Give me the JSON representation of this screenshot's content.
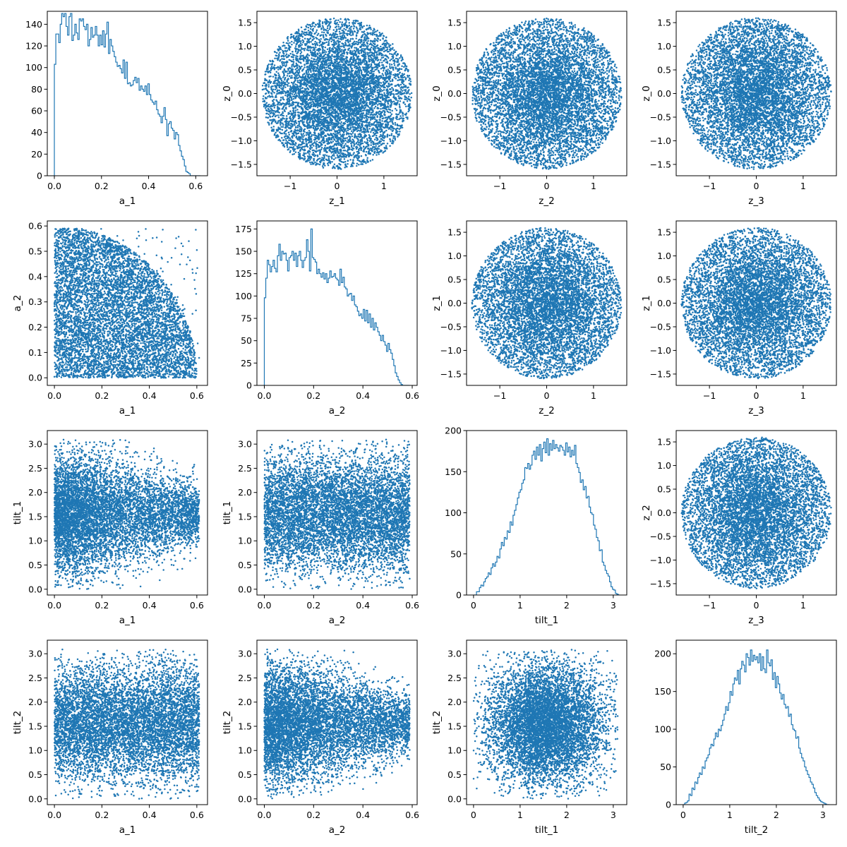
{
  "figure": {
    "marker_color": "#1f77b4",
    "axes_color": "#000000",
    "background": "#ffffff",
    "grid": false
  },
  "chart_data": [
    {
      "type": "histogram",
      "row": 0,
      "col": 0,
      "xlabel": "a_1",
      "ylabel": "",
      "xlim": [
        -0.03,
        0.65
      ],
      "ylim": [
        0,
        152
      ],
      "xticks": [
        0.0,
        0.2,
        0.4,
        0.6
      ],
      "xtick_labels": [
        "0.0",
        "0.2",
        "0.4",
        "0.6"
      ],
      "yticks": [
        0,
        20,
        40,
        60,
        80,
        100,
        120,
        140
      ],
      "ytick_labels": [
        "0",
        "20",
        "40",
        "60",
        "80",
        "100",
        "120",
        "140"
      ],
      "bin_start": 0.0,
      "bin_width": 0.0062,
      "counts": [
        103,
        131,
        131,
        123,
        140,
        150,
        147,
        150,
        138,
        130,
        147,
        150,
        125,
        130,
        140,
        132,
        126,
        145,
        143,
        145,
        138,
        135,
        140,
        120,
        126,
        137,
        128,
        130,
        138,
        130,
        120,
        130,
        121,
        134,
        119,
        131,
        142,
        113,
        126,
        120,
        115,
        110,
        105,
        101,
        102,
        99,
        95,
        107,
        90,
        105,
        85,
        86,
        83,
        84,
        88,
        91,
        86,
        90,
        79,
        83,
        80,
        78,
        83,
        75,
        85,
        75,
        70,
        68,
        66,
        69,
        61,
        57,
        55,
        49,
        55,
        63,
        52,
        37,
        48,
        50,
        44,
        42,
        34,
        40,
        38,
        28,
        23,
        18,
        15,
        9,
        4,
        3,
        2,
        0,
        0,
        0,
        0,
        0,
        0,
        0
      ]
    },
    {
      "type": "scatter",
      "row": 0,
      "col": 1,
      "xlabel": "z_1",
      "ylabel": "z_0",
      "xlim": [
        -1.71,
        1.71
      ],
      "ylim": [
        -1.74,
        1.74
      ],
      "xticks": [
        -1,
        0,
        1
      ],
      "xtick_labels": [
        "−1",
        "0",
        "1"
      ],
      "yticks": [
        -1.5,
        -1.0,
        -0.5,
        0.0,
        0.5,
        1.0,
        1.5
      ],
      "ytick_labels": [
        "−1.5",
        "−1.0",
        "−0.5",
        "0.0",
        "0.5",
        "1.0",
        "1.5"
      ],
      "point_count": 7000,
      "x_range": [
        -1.6,
        1.6
      ],
      "y_range": [
        -1.6,
        1.6
      ],
      "spread": "disk, radius 1.6, denser near the center"
    },
    {
      "type": "scatter",
      "row": 0,
      "col": 2,
      "xlabel": "z_2",
      "ylabel": "z_0",
      "xlim": [
        -1.71,
        1.71
      ],
      "ylim": [
        -1.74,
        1.74
      ],
      "xticks": [
        -1,
        0,
        1
      ],
      "xtick_labels": [
        "−1",
        "0",
        "1"
      ],
      "yticks": [
        -1.5,
        -1.0,
        -0.5,
        0.0,
        0.5,
        1.0,
        1.5
      ],
      "ytick_labels": [
        "−1.5",
        "−1.0",
        "−0.5",
        "0.0",
        "0.5",
        "1.0",
        "1.5"
      ],
      "point_count": 7000,
      "x_range": [
        -1.6,
        1.6
      ],
      "y_range": [
        -1.6,
        1.6
      ],
      "spread": "disk, radius 1.6, denser near the center"
    },
    {
      "type": "scatter",
      "row": 0,
      "col": 3,
      "xlabel": "z_3",
      "ylabel": "z_0",
      "xlim": [
        -1.71,
        1.71
      ],
      "ylim": [
        -1.74,
        1.74
      ],
      "xticks": [
        -1,
        0,
        1
      ],
      "xtick_labels": [
        "−1",
        "0",
        "1"
      ],
      "yticks": [
        -1.5,
        -1.0,
        -0.5,
        0.0,
        0.5,
        1.0,
        1.5
      ],
      "ytick_labels": [
        "−1.5",
        "−1.0",
        "−0.5",
        "0.0",
        "0.5",
        "1.0",
        "1.5"
      ],
      "point_count": 7000,
      "x_range": [
        -1.6,
        1.6
      ],
      "y_range": [
        -1.6,
        1.6
      ],
      "spread": "disk, radius 1.6, denser near the center"
    },
    {
      "type": "scatter",
      "row": 1,
      "col": 0,
      "xlabel": "a_1",
      "ylabel": "a_2",
      "xlim": [
        -0.03,
        0.645
      ],
      "ylim": [
        -0.03,
        0.62
      ],
      "xticks": [
        0.0,
        0.2,
        0.4,
        0.6
      ],
      "xtick_labels": [
        "0.0",
        "0.2",
        "0.4",
        "0.6"
      ],
      "yticks": [
        0.0,
        0.1,
        0.2,
        0.3,
        0.4,
        0.5,
        0.6
      ],
      "ytick_labels": [
        "0.0",
        "0.1",
        "0.2",
        "0.3",
        "0.4",
        "0.5",
        "0.6"
      ],
      "point_count": 7000,
      "x_range": [
        0,
        0.61
      ],
      "y_range": [
        0,
        0.59
      ],
      "spread": "a_1 and a_2 both in [0, ~0.6]; the upper-right corner is empty (a_1² + a_2² ≲ 0.6²)"
    },
    {
      "type": "histogram",
      "row": 1,
      "col": 1,
      "xlabel": "a_2",
      "ylabel": "",
      "xlim": [
        -0.03,
        0.62
      ],
      "ylim": [
        0,
        184
      ],
      "xticks": [
        0.0,
        0.2,
        0.4,
        0.6
      ],
      "xtick_labels": [
        "0.0",
        "0.2",
        "0.4",
        "0.6"
      ],
      "yticks": [
        0,
        25,
        50,
        75,
        100,
        125,
        150,
        175
      ],
      "ytick_labels": [
        "0",
        "25",
        "50",
        "75",
        "100",
        "125",
        "150",
        "175"
      ],
      "bin_start": 0.0,
      "bin_width": 0.0059,
      "counts": [
        98,
        120,
        140,
        135,
        127,
        133,
        140,
        131,
        127,
        145,
        158,
        140,
        150,
        147,
        148,
        140,
        128,
        143,
        145,
        150,
        140,
        148,
        133,
        145,
        150,
        140,
        132,
        140,
        143,
        163,
        150,
        128,
        175,
        143,
        141,
        138,
        125,
        130,
        125,
        121,
        126,
        119,
        125,
        115,
        120,
        128,
        121,
        122,
        125,
        120,
        118,
        112,
        130,
        115,
        121,
        110,
        108,
        100,
        102,
        103,
        95,
        100,
        90,
        88,
        83,
        78,
        80,
        75,
        85,
        72,
        84,
        70,
        80,
        65,
        75,
        62,
        70,
        65,
        60,
        56,
        50,
        56,
        49,
        45,
        38,
        47,
        40,
        36,
        29,
        22,
        14,
        10,
        6,
        3,
        1,
        0,
        0,
        0,
        0,
        0
      ]
    },
    {
      "type": "scatter",
      "row": 1,
      "col": 2,
      "xlabel": "z_2",
      "ylabel": "z_1",
      "xlim": [
        -1.71,
        1.71
      ],
      "ylim": [
        -1.74,
        1.74
      ],
      "xticks": [
        -1,
        0,
        1
      ],
      "xtick_labels": [
        "−1",
        "0",
        "1"
      ],
      "yticks": [
        -1.5,
        -1.0,
        -0.5,
        0.0,
        0.5,
        1.0,
        1.5
      ],
      "ytick_labels": [
        "−1.5",
        "−1.0",
        "−0.5",
        "0.0",
        "0.5",
        "1.0",
        "1.5"
      ],
      "point_count": 7000,
      "x_range": [
        -1.6,
        1.6
      ],
      "y_range": [
        -1.6,
        1.6
      ],
      "spread": "disk, radius 1.6, denser near the center"
    },
    {
      "type": "scatter",
      "row": 1,
      "col": 3,
      "xlabel": "z_3",
      "ylabel": "z_1",
      "xlim": [
        -1.71,
        1.71
      ],
      "ylim": [
        -1.74,
        1.74
      ],
      "xticks": [
        -1,
        0,
        1
      ],
      "xtick_labels": [
        "−1",
        "0",
        "1"
      ],
      "yticks": [
        -1.5,
        -1.0,
        -0.5,
        0.0,
        0.5,
        1.0,
        1.5
      ],
      "ytick_labels": [
        "−1.5",
        "−1.0",
        "−0.5",
        "0.0",
        "0.5",
        "1.0",
        "1.5"
      ],
      "point_count": 7000,
      "x_range": [
        -1.6,
        1.6
      ],
      "y_range": [
        -1.6,
        1.6
      ],
      "spread": "disk, radius 1.6, denser near the center"
    },
    {
      "type": "scatter",
      "row": 2,
      "col": 0,
      "xlabel": "a_1",
      "ylabel": "tilt_1",
      "xlim": [
        -0.03,
        0.645
      ],
      "ylim": [
        -0.12,
        3.28
      ],
      "xticks": [
        0.0,
        0.2,
        0.4,
        0.6
      ],
      "xtick_labels": [
        "0.0",
        "0.2",
        "0.4",
        "0.6"
      ],
      "yticks": [
        0.0,
        0.5,
        1.0,
        1.5,
        2.0,
        2.5,
        3.0
      ],
      "ytick_labels": [
        "0.0",
        "0.5",
        "1.0",
        "1.5",
        "2.0",
        "2.5",
        "3.0"
      ],
      "point_count": 7000,
      "x_range": [
        0,
        0.61
      ],
      "y_range": [
        0,
        3.1
      ],
      "spread": "tilt_1 spans 0–3.1 at small a_1 and narrows toward 1.5 as a_1 approaches 0.6"
    },
    {
      "type": "scatter",
      "row": 2,
      "col": 1,
      "xlabel": "a_2",
      "ylabel": "tilt_1",
      "xlim": [
        -0.03,
        0.62
      ],
      "ylim": [
        -0.12,
        3.28
      ],
      "xticks": [
        0.0,
        0.2,
        0.4,
        0.6
      ],
      "xtick_labels": [
        "0.0",
        "0.2",
        "0.4",
        "0.6"
      ],
      "yticks": [
        0.0,
        0.5,
        1.0,
        1.5,
        2.0,
        2.5,
        3.0
      ],
      "ytick_labels": [
        "0.0",
        "0.5",
        "1.0",
        "1.5",
        "2.0",
        "2.5",
        "3.0"
      ],
      "point_count": 7000,
      "x_range": [
        0,
        0.59
      ],
      "y_range": [
        0,
        3.1
      ],
      "spread": "filled band, a_2 in [0, 0.59], tilt_1 in [0, 3.1] concentrated around 1.5"
    },
    {
      "type": "histogram",
      "row": 2,
      "col": 2,
      "xlabel": "tilt_1",
      "ylabel": "",
      "xlim": [
        -0.15,
        3.29
      ],
      "ylim": [
        0,
        200
      ],
      "xticks": [
        0,
        1,
        2,
        3
      ],
      "xtick_labels": [
        "0",
        "1",
        "2",
        "3"
      ],
      "yticks": [
        0,
        50,
        100,
        150,
        200
      ],
      "ytick_labels": [
        "0",
        "50",
        "100",
        "150",
        "200"
      ],
      "bin_start": 0.0,
      "bin_width": 0.0314,
      "counts": [
        0,
        0,
        4,
        4,
        9,
        12,
        11,
        16,
        20,
        22,
        27,
        25,
        33,
        38,
        35,
        40,
        47,
        45,
        56,
        64,
        60,
        70,
        68,
        78,
        76,
        89,
        85,
        97,
        103,
        110,
        118,
        125,
        128,
        136,
        140,
        155,
        154,
        160,
        153,
        158,
        170,
        175,
        165,
        180,
        170,
        183,
        163,
        178,
        186,
        173,
        190,
        170,
        184,
        176,
        188,
        178,
        183,
        179,
        175,
        182,
        180,
        176,
        170,
        185,
        174,
        180,
        168,
        176,
        170,
        182,
        160,
        155,
        149,
        137,
        140,
        128,
        132,
        118,
        120,
        107,
        100,
        98,
        85,
        80,
        70,
        66,
        54,
        55,
        40,
        36,
        30,
        26,
        23,
        16,
        10,
        7,
        6,
        2,
        1,
        0
      ]
    },
    {
      "type": "scatter",
      "row": 2,
      "col": 3,
      "xlabel": "z_3",
      "ylabel": "z_2",
      "xlim": [
        -1.71,
        1.71
      ],
      "ylim": [
        -1.74,
        1.74
      ],
      "xticks": [
        -1,
        0,
        1
      ],
      "xtick_labels": [
        "−1",
        "0",
        "1"
      ],
      "yticks": [
        -1.5,
        -1.0,
        -0.5,
        0.0,
        0.5,
        1.0,
        1.5
      ],
      "ytick_labels": [
        "−1.5",
        "−1.0",
        "−0.5",
        "0.0",
        "0.5",
        "1.0",
        "1.5"
      ],
      "point_count": 7000,
      "x_range": [
        -1.6,
        1.6
      ],
      "y_range": [
        -1.6,
        1.6
      ],
      "spread": "disk, radius 1.6, denser near the center"
    },
    {
      "type": "scatter",
      "row": 3,
      "col": 0,
      "xlabel": "a_1",
      "ylabel": "tilt_2",
      "xlim": [
        -0.03,
        0.645
      ],
      "ylim": [
        -0.12,
        3.28
      ],
      "xticks": [
        0.0,
        0.2,
        0.4,
        0.6
      ],
      "xtick_labels": [
        "0.0",
        "0.2",
        "0.4",
        "0.6"
      ],
      "yticks": [
        0.0,
        0.5,
        1.0,
        1.5,
        2.0,
        2.5,
        3.0
      ],
      "ytick_labels": [
        "0.0",
        "0.5",
        "1.0",
        "1.5",
        "2.0",
        "2.5",
        "3.0"
      ],
      "point_count": 7000,
      "x_range": [
        0,
        0.61
      ],
      "y_range": [
        0,
        3.1
      ],
      "spread": "filled band, a_1 in [0, 0.61], tilt_2 in [0, 3.1] concentrated around 1.5"
    },
    {
      "type": "scatter",
      "row": 3,
      "col": 1,
      "xlabel": "a_2",
      "ylabel": "tilt_2",
      "xlim": [
        -0.03,
        0.62
      ],
      "ylim": [
        -0.12,
        3.28
      ],
      "xticks": [
        0.0,
        0.2,
        0.4,
        0.6
      ],
      "xtick_labels": [
        "0.0",
        "0.2",
        "0.4",
        "0.6"
      ],
      "yticks": [
        0.0,
        0.5,
        1.0,
        1.5,
        2.0,
        2.5,
        3.0
      ],
      "ytick_labels": [
        "0.0",
        "0.5",
        "1.0",
        "1.5",
        "2.0",
        "2.5",
        "3.0"
      ],
      "point_count": 7000,
      "x_range": [
        0,
        0.59
      ],
      "y_range": [
        0,
        3.1
      ],
      "spread": "tilt_2 spans 0–3.1 at small a_2 and narrows toward 1.7 as a_2 approaches 0.59"
    },
    {
      "type": "scatter",
      "row": 3,
      "col": 2,
      "xlabel": "tilt_1",
      "ylabel": "tilt_2",
      "xlim": [
        -0.15,
        3.29
      ],
      "ylim": [
        -0.12,
        3.28
      ],
      "xticks": [
        0,
        1,
        2,
        3
      ],
      "xtick_labels": [
        "0",
        "1",
        "2",
        "3"
      ],
      "yticks": [
        0.0,
        0.5,
        1.0,
        1.5,
        2.0,
        2.5,
        3.0
      ],
      "ytick_labels": [
        "0.0",
        "0.5",
        "1.0",
        "1.5",
        "2.0",
        "2.5",
        "3.0"
      ],
      "point_count": 7000,
      "x_range": [
        0,
        3.1
      ],
      "y_range": [
        0,
        3.1
      ],
      "spread": "roughly uniform square, denser around (1.6, 1.6)"
    },
    {
      "type": "histogram",
      "row": 3,
      "col": 3,
      "xlabel": "tilt_2",
      "ylabel": "",
      "xlim": [
        -0.15,
        3.29
      ],
      "ylim": [
        0,
        218
      ],
      "xticks": [
        0,
        1,
        2,
        3
      ],
      "xtick_labels": [
        "0",
        "1",
        "2",
        "3"
      ],
      "yticks": [
        0,
        50,
        100,
        150,
        200
      ],
      "ytick_labels": [
        "0",
        "50",
        "100",
        "150",
        "200"
      ],
      "bin_start": 0.0,
      "bin_width": 0.0314,
      "counts": [
        0,
        2,
        3,
        5,
        14,
        12,
        22,
        20,
        30,
        28,
        36,
        42,
        40,
        50,
        48,
        58,
        62,
        66,
        75,
        80,
        78,
        87,
        95,
        90,
        100,
        98,
        105,
        112,
        120,
        130,
        125,
        135,
        150,
        145,
        160,
        168,
        165,
        178,
        160,
        180,
        190,
        185,
        176,
        200,
        195,
        185,
        205,
        190,
        198,
        192,
        196,
        188,
        200,
        178,
        196,
        180,
        175,
        205,
        188,
        184,
        192,
        166,
        175,
        155,
        170,
        160,
        148,
        140,
        146,
        133,
        128,
        130,
        117,
        120,
        106,
        100,
        98,
        88,
        90,
        75,
        68,
        62,
        58,
        50,
        45,
        40,
        36,
        30,
        27,
        22,
        16,
        12,
        9,
        6,
        4,
        3,
        2,
        1,
        0,
        0
      ]
    }
  ]
}
